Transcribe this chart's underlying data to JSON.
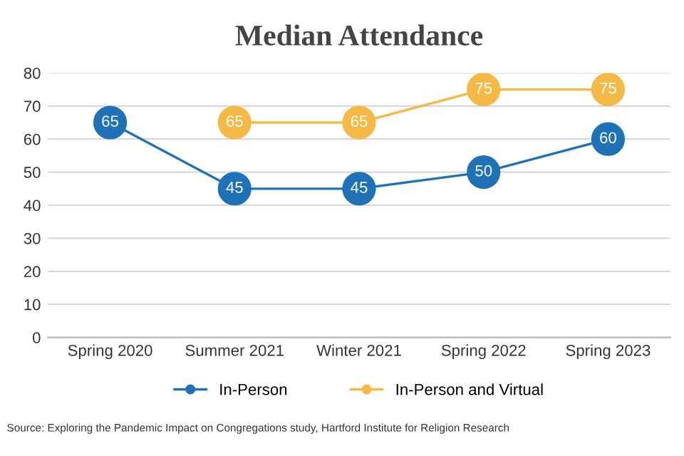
{
  "chart_data": {
    "type": "line",
    "title": "Median Attendance",
    "categories": [
      "Spring 2020",
      "Summer 2021",
      "Winter 2021",
      "Spring 2022",
      "Spring 2023"
    ],
    "series": [
      {
        "name": "In-Person",
        "color": "#1f72b5",
        "values": [
          65,
          45,
          45,
          50,
          60
        ]
      },
      {
        "name": "In-Person and Virtual",
        "color": "#f5b945",
        "values": [
          null,
          65,
          65,
          75,
          75
        ]
      }
    ],
    "ylim": [
      0,
      80
    ],
    "yticks": [
      0,
      10,
      20,
      30,
      40,
      50,
      60,
      70,
      80
    ],
    "grid": "y",
    "legend": "bottom",
    "marker": "circle",
    "data_labels": true,
    "annotations": [
      "Source: Exploring the Pandemic Impact on Congregations study, Hartford Institute for Religion Research"
    ]
  }
}
